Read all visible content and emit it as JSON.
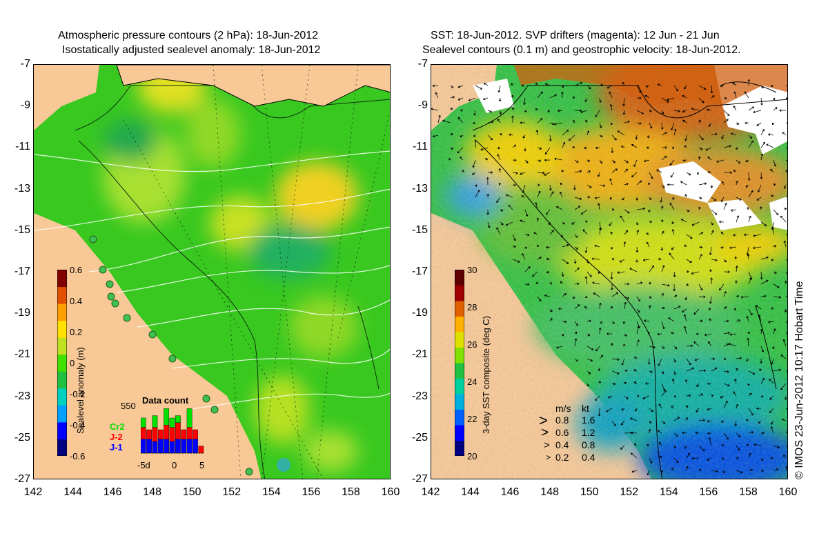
{
  "left_panel": {
    "title_line1": "Atmospheric pressure contours (2 hPa): 18-Jun-2012",
    "title_line2": "Isostatically adjusted sealevel anomaly: 18-Jun-2012",
    "y_ticks": [
      "-7",
      "-9",
      "-11",
      "-13",
      "-15",
      "-17",
      "-19",
      "-21",
      "-23",
      "-25",
      "-27"
    ],
    "x_ticks": [
      "142",
      "144",
      "146",
      "148",
      "150",
      "152",
      "154",
      "156",
      "158",
      "160"
    ],
    "colorbar": {
      "label": "Sealevel anomaly (m)",
      "ticks": [
        "0.6",
        "0.4",
        "0.2",
        "0",
        "-0.2",
        "-0.4",
        "-0.6"
      ],
      "colors": [
        "#000080",
        "#0000ff",
        "#00a0ff",
        "#00d0c0",
        "#20c040",
        "#40e000",
        "#c0e020",
        "#ffe000",
        "#ffa000",
        "#e05000",
        "#800000"
      ]
    },
    "data_count": {
      "title": "Data count",
      "max_label": "550",
      "series": [
        {
          "name": "Cr2",
          "color": "#00e000"
        },
        {
          "name": "J-2",
          "color": "#ff0000"
        },
        {
          "name": "J-1",
          "color": "#0000ff"
        }
      ],
      "x_labels": [
        "-5d",
        "0",
        "5"
      ],
      "bars": [
        {
          "j1": 0.3,
          "j2": 0.25,
          "cr2": 0.2
        },
        {
          "j1": 0.3,
          "j2": 0.2,
          "cr2": 0.0
        },
        {
          "j1": 0.25,
          "j2": 0.3,
          "cr2": 0.25
        },
        {
          "j1": 0.3,
          "j2": 0.2,
          "cr2": 0.0
        },
        {
          "j1": 0.3,
          "j2": 0.3,
          "cr2": 0.35
        },
        {
          "j1": 0.25,
          "j2": 0.3,
          "cr2": 0.2
        },
        {
          "j1": 0.3,
          "j2": 0.35,
          "cr2": 0.15
        },
        {
          "j1": 0.3,
          "j2": 0.2,
          "cr2": 0.0
        },
        {
          "j1": 0.3,
          "j2": 0.25,
          "cr2": 0.4
        },
        {
          "j1": 0.3,
          "j2": 0.2,
          "cr2": 0.0
        },
        {
          "j1": 0.0,
          "j2": 0.15,
          "cr2": 0.0
        }
      ]
    }
  },
  "right_panel": {
    "title_line1": "SST: 18-Jun-2012. SVP drifters (magenta): 12 Jun - 21 Jun",
    "title_line2": "Sealevel contours (0.1 m) and geostrophic velocity: 18-Jun-2012.",
    "y_ticks": [
      "-7",
      "-9",
      "-11",
      "-13",
      "-15",
      "-17",
      "-19",
      "-21",
      "-23",
      "-25",
      "-27"
    ],
    "x_ticks": [
      "142",
      "144",
      "146",
      "148",
      "150",
      "152",
      "154",
      "156",
      "158",
      "160"
    ],
    "colorbar": {
      "label": "3-day SST composite (deg C)",
      "ticks": [
        "30",
        "28",
        "26",
        "24",
        "22",
        "20"
      ],
      "colors": [
        "#000080",
        "#0000ff",
        "#0060ff",
        "#00b0e0",
        "#00d0a0",
        "#20c040",
        "#80e000",
        "#e0e000",
        "#ffb000",
        "#e06000",
        "#a00000",
        "#600000"
      ]
    },
    "velocity_legend": {
      "header_ms": "m/s",
      "header_kt": "kt",
      "rows": [
        {
          "ms": "0.8",
          "kt": "1.6"
        },
        {
          "ms": "0.6",
          "kt": "1.2"
        },
        {
          "ms": "0.4",
          "kt": "0.8"
        },
        {
          "ms": "0.2",
          "kt": "0.4"
        }
      ]
    }
  },
  "credit": "© IMOS 23-Jun-2012 10:17 Hobart Time",
  "colors": {
    "land": "#f8c896",
    "ocean_green": "#40d020",
    "missing": "#ffffff"
  }
}
